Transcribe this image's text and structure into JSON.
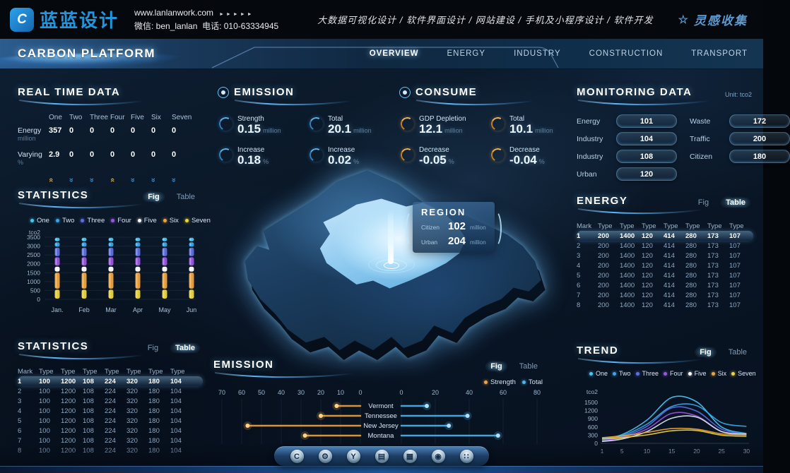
{
  "brand": {
    "logo_glyph": "C",
    "logo_text": "蓝蓝设计",
    "website": "www.lanlanwork.com",
    "arrows": "►►►►►",
    "wechat": "微信: ben_lanlan",
    "phone": "电话: 010-63334945",
    "services": "大数据可视化设计 / 软件界面设计 / 网站建设 / 手机及小程序设计 / 软件开发",
    "collect_star": "☆",
    "collect": "灵感收集"
  },
  "nav": {
    "title": "CARBON PLATFORM",
    "items": [
      {
        "label": "OVERVIEW",
        "active": true
      },
      {
        "label": "ENERGY",
        "active": false
      },
      {
        "label": "INDUSTRY",
        "active": false
      },
      {
        "label": "CONSTRUCTION",
        "active": false
      },
      {
        "label": "TRANSPORT",
        "active": false
      }
    ]
  },
  "toggle_labels": {
    "fig": "Fig",
    "table": "Table"
  },
  "legend7": [
    {
      "label": "One",
      "color": "#49c6f2"
    },
    {
      "label": "Two",
      "color": "#38a6e8"
    },
    {
      "label": "Three",
      "color": "#5c6fe0"
    },
    {
      "label": "Four",
      "color": "#9a55e0"
    },
    {
      "label": "Five",
      "color": "#ffffff"
    },
    {
      "label": "Six",
      "color": "#f0a33c"
    },
    {
      "label": "Seven",
      "color": "#ecd53a"
    }
  ],
  "panels": {
    "realtime": {
      "title": "REAL TIME DATA",
      "columns": [
        "One",
        "Two",
        "Three",
        "Four",
        "Five",
        "Six",
        "Seven"
      ],
      "rows": [
        {
          "label": "Energy",
          "unit": "million",
          "values": [
            "357",
            "0",
            "0",
            "0",
            "0",
            "0",
            "0"
          ]
        },
        {
          "label": "Varying",
          "unit": "%",
          "values": [
            "2.9",
            "0",
            "0",
            "0",
            "0",
            "0",
            "0"
          ],
          "trends": [
            "up",
            "down",
            "down",
            "up",
            "down",
            "down",
            "down"
          ]
        }
      ]
    },
    "emission_kpis": {
      "title": "EMISSION",
      "accent": "blue",
      "items": [
        {
          "label": "Strength",
          "value": "0.15",
          "unit": "million"
        },
        {
          "label": "Total",
          "value": "20.1",
          "unit": "million"
        },
        {
          "label": "Increase",
          "value": "0.18",
          "unit": "%"
        },
        {
          "label": "Increase",
          "value": "0.02",
          "unit": "%"
        }
      ]
    },
    "consume_kpis": {
      "title": "CONSUME",
      "accent": "gold",
      "items": [
        {
          "label": "GDP Depletion",
          "value": "12.1",
          "unit": "million"
        },
        {
          "label": "Total",
          "value": "10.1",
          "unit": "million"
        },
        {
          "label": "Decrease",
          "value": "-0.05",
          "unit": "%"
        },
        {
          "label": "Decrease",
          "value": "-0.04",
          "unit": "%"
        }
      ]
    },
    "monitoring": {
      "title": "MONITORING DATA",
      "unit_label": "Unit: tco2",
      "left": [
        [
          "Energy",
          "101"
        ],
        [
          "Industry",
          "104"
        ],
        [
          "Industry",
          "108"
        ],
        [
          "Urban",
          "120"
        ]
      ],
      "right": [
        [
          "Waste",
          "172"
        ],
        [
          "Traffic",
          "200"
        ],
        [
          "Citizen",
          "180"
        ]
      ]
    },
    "statistics_fig": {
      "title": "STATISTICS",
      "active_toggle": "fig"
    },
    "region_tooltip": {
      "title": "REGION",
      "rows": [
        {
          "label": "Citizen",
          "value": "102",
          "unit": "million"
        },
        {
          "label": "Urban",
          "value": "204",
          "unit": "million"
        }
      ]
    },
    "energy_table": {
      "title": "ENERGY",
      "active_toggle": "table",
      "headers": [
        "Mark",
        "Type",
        "Type",
        "Type",
        "Type",
        "Type",
        "Type",
        "Type"
      ],
      "highlight_row": 0,
      "rows": [
        [
          "1",
          "200",
          "1400",
          "120",
          "414",
          "280",
          "173",
          "107"
        ],
        [
          "2",
          "200",
          "1400",
          "120",
          "414",
          "280",
          "173",
          "107"
        ],
        [
          "3",
          "200",
          "1400",
          "120",
          "414",
          "280",
          "173",
          "107"
        ],
        [
          "4",
          "200",
          "1400",
          "120",
          "414",
          "280",
          "173",
          "107"
        ],
        [
          "5",
          "200",
          "1400",
          "120",
          "414",
          "280",
          "173",
          "107"
        ],
        [
          "6",
          "200",
          "1400",
          "120",
          "414",
          "280",
          "173",
          "107"
        ],
        [
          "7",
          "200",
          "1400",
          "120",
          "414",
          "280",
          "173",
          "107"
        ],
        [
          "8",
          "200",
          "1400",
          "120",
          "414",
          "280",
          "173",
          "107"
        ]
      ]
    },
    "statistics_table": {
      "title": "STATISTICS",
      "active_toggle": "table",
      "headers": [
        "Mark",
        "Type",
        "Type",
        "Type",
        "Type",
        "Type",
        "Type",
        "Type"
      ],
      "highlight_row": 0,
      "rows": [
        [
          "1",
          "100",
          "1200",
          "108",
          "224",
          "320",
          "180",
          "104"
        ],
        [
          "2",
          "100",
          "1200",
          "108",
          "224",
          "320",
          "180",
          "104"
        ],
        [
          "3",
          "100",
          "1200",
          "108",
          "224",
          "320",
          "180",
          "104"
        ],
        [
          "4",
          "100",
          "1200",
          "108",
          "224",
          "320",
          "180",
          "104"
        ],
        [
          "5",
          "100",
          "1200",
          "108",
          "224",
          "320",
          "180",
          "104"
        ],
        [
          "6",
          "100",
          "1200",
          "108",
          "224",
          "320",
          "180",
          "104"
        ],
        [
          "7",
          "100",
          "1200",
          "108",
          "224",
          "320",
          "180",
          "104"
        ],
        [
          "8",
          "100",
          "1200",
          "108",
          "224",
          "320",
          "180",
          "104"
        ]
      ]
    },
    "emission_fig": {
      "title": "EMISSION",
      "active_toggle": "fig"
    },
    "trend": {
      "title": "TREND",
      "active_toggle": "fig"
    }
  },
  "chart_data": [
    {
      "id": "statistics-stacked",
      "type": "bar",
      "stacked": true,
      "title": "STATISTICS",
      "ylabel": "tco2",
      "ylim": [
        0,
        3500
      ],
      "yticks": [
        3500,
        3000,
        2500,
        2000,
        1500,
        1000,
        500,
        0
      ],
      "categories": [
        "Jan.",
        "Feb",
        "Mar",
        "Apr",
        "May",
        "Jun"
      ],
      "legend": [
        "One",
        "Two",
        "Three",
        "Four",
        "Five",
        "Six",
        "Seven"
      ],
      "series_bottom_up": [
        {
          "name": "Seven",
          "color": "#ecd53a",
          "values": [
            500,
            500,
            500,
            500,
            500,
            500
          ]
        },
        {
          "name": "Six",
          "color": "#f0a33c",
          "values": [
            900,
            900,
            900,
            900,
            900,
            900
          ]
        },
        {
          "name": "Five",
          "color": "#ffffff",
          "values": [
            280,
            280,
            280,
            280,
            280,
            280
          ]
        },
        {
          "name": "Four",
          "color": "#9a55e0",
          "values": [
            470,
            470,
            470,
            470,
            470,
            470
          ]
        },
        {
          "name": "Three",
          "color": "#5c6fe0",
          "values": [
            480,
            480,
            480,
            480,
            480,
            480
          ]
        },
        {
          "name": "Two",
          "color": "#38a6e8",
          "values": [
            240,
            240,
            240,
            240,
            240,
            240
          ]
        },
        {
          "name": "One",
          "color": "#49c6f2",
          "values": [
            200,
            200,
            200,
            200,
            200,
            200
          ]
        }
      ]
    },
    {
      "id": "emission-lollipop",
      "type": "bar",
      "orientation": "horizontal-diverging",
      "title": "EMISSION",
      "categories": [
        "Vermont",
        "Tennessee",
        "New Jersey",
        "Montana"
      ],
      "series": [
        {
          "name": "Strength",
          "color": "#f0a33c",
          "values": [
            12,
            20,
            57,
            28
          ]
        },
        {
          "name": "Total",
          "color": "#4db4f0",
          "values": [
            15,
            39,
            28,
            57
          ]
        }
      ],
      "left_axis_ticks": [
        70,
        60,
        50,
        40,
        30,
        20,
        10,
        0
      ],
      "right_axis_ticks": [
        0,
        20,
        40,
        60,
        80
      ]
    },
    {
      "id": "trend-lines",
      "type": "line",
      "title": "TREND",
      "ylabel": "tco2",
      "ylim": [
        0,
        1800
      ],
      "yticks": [
        1500,
        1200,
        900,
        600,
        300,
        0
      ],
      "x": [
        1,
        5,
        10,
        15,
        20,
        25,
        30
      ],
      "series": [
        {
          "name": "One",
          "color": "#49c6f2",
          "values": [
            180,
            320,
            850,
            1680,
            1520,
            600,
            360
          ]
        },
        {
          "name": "Two",
          "color": "#38a6e8",
          "values": [
            150,
            280,
            700,
            1350,
            1380,
            760,
            620
          ]
        },
        {
          "name": "Three",
          "color": "#5c6fe0",
          "values": [
            120,
            240,
            620,
            1300,
            1180,
            520,
            340
          ]
        },
        {
          "name": "Four",
          "color": "#9a55e0",
          "values": [
            100,
            210,
            520,
            1100,
            1000,
            440,
            310
          ]
        },
        {
          "name": "Five",
          "color": "#d9e6ef",
          "values": [
            70,
            160,
            430,
            920,
            960,
            430,
            340
          ]
        },
        {
          "name": "Six",
          "color": "#f0a33c",
          "values": [
            210,
            270,
            400,
            540,
            520,
            350,
            310
          ]
        },
        {
          "name": "Seven",
          "color": "#ecd53a",
          "values": [
            160,
            210,
            310,
            460,
            470,
            300,
            260
          ]
        }
      ]
    }
  ],
  "dock": {
    "icons": [
      {
        "name": "hexagon-c-icon",
        "glyph": "C"
      },
      {
        "name": "gear-icon",
        "glyph": "⚙"
      },
      {
        "name": "circle-y-icon",
        "glyph": "Y"
      },
      {
        "name": "kiosk-icon",
        "glyph": "▤"
      },
      {
        "name": "board-chart-icon",
        "glyph": "▦"
      },
      {
        "name": "nut-icon",
        "glyph": "◉"
      },
      {
        "name": "apps-grid-icon",
        "glyph": "∷"
      }
    ]
  }
}
